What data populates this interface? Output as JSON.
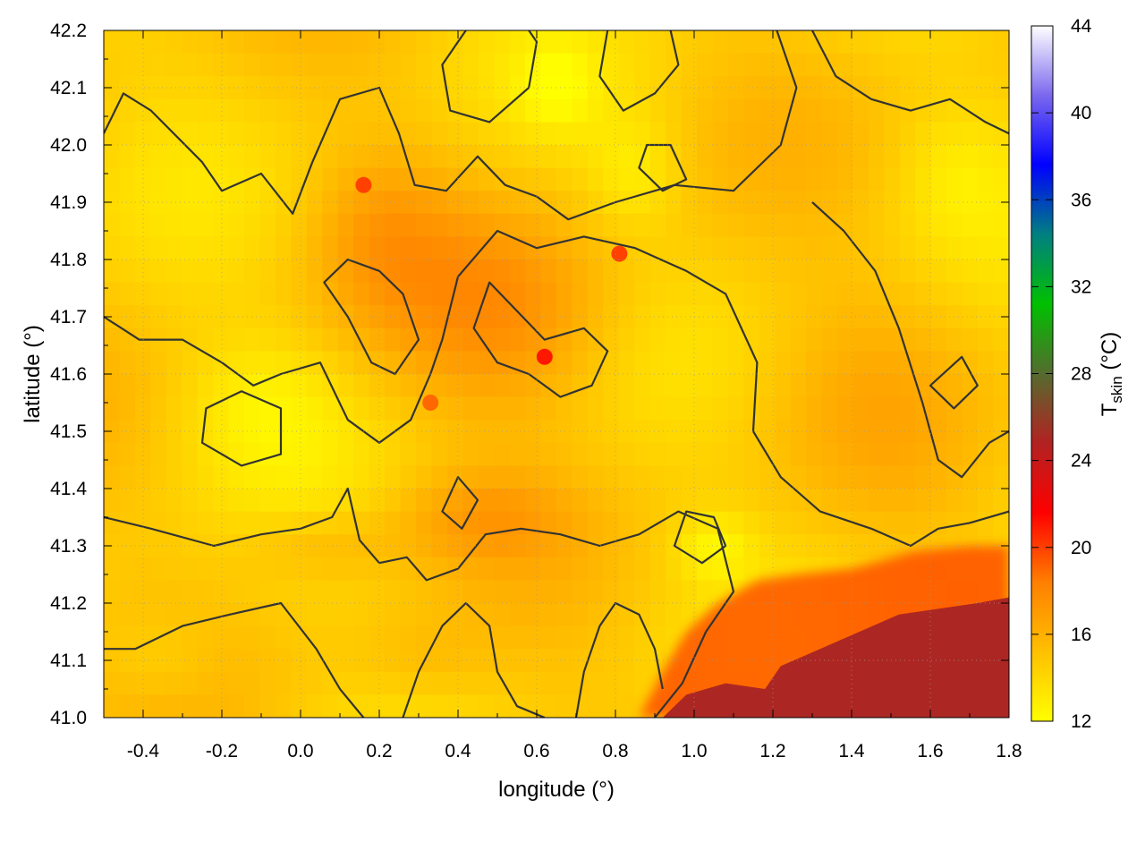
{
  "chart_data": {
    "type": "heatmap",
    "title": "",
    "xlabel": "longitude (°)",
    "ylabel": "latitude (°)",
    "xlim": [
      -0.5,
      1.8
    ],
    "ylim": [
      41.0,
      42.2
    ],
    "xticks": [
      "-0.4",
      "-0.2",
      "0.0",
      "0.2",
      "0.4",
      "0.6",
      "0.8",
      "1.0",
      "1.2",
      "1.4",
      "1.6",
      "1.8"
    ],
    "yticks": [
      "41.0",
      "41.1",
      "41.2",
      "41.3",
      "41.4",
      "41.5",
      "41.6",
      "41.7",
      "41.8",
      "41.9",
      "42.0",
      "42.1",
      "42.2"
    ],
    "grid": true,
    "colorbar": {
      "label_main": "T",
      "label_sub": "skin",
      "label_unit": " (°C)",
      "range": [
        12,
        44
      ],
      "ticks": [
        "12",
        "16",
        "20",
        "24",
        "28",
        "32",
        "36",
        "40",
        "44"
      ],
      "palette": [
        "#ffff00",
        "#ffc000",
        "#ff7f00",
        "#ff0000",
        "#b22222",
        "#556b2f",
        "#00c000",
        "#008080",
        "#0000ff",
        "#7b68ee",
        "#ffffff"
      ]
    },
    "field": {
      "land_typical_min": 12,
      "land_typical_max": 18,
      "sea_value": 25,
      "contour_color": "#333333",
      "hotspots": [
        {
          "lon": 0.62,
          "lat": 41.63,
          "value": 21
        },
        {
          "lon": 0.16,
          "lat": 41.93,
          "value": 20
        },
        {
          "lon": 0.81,
          "lat": 41.81,
          "value": 20
        },
        {
          "lon": 0.33,
          "lat": 41.55,
          "value": 19
        }
      ]
    }
  }
}
